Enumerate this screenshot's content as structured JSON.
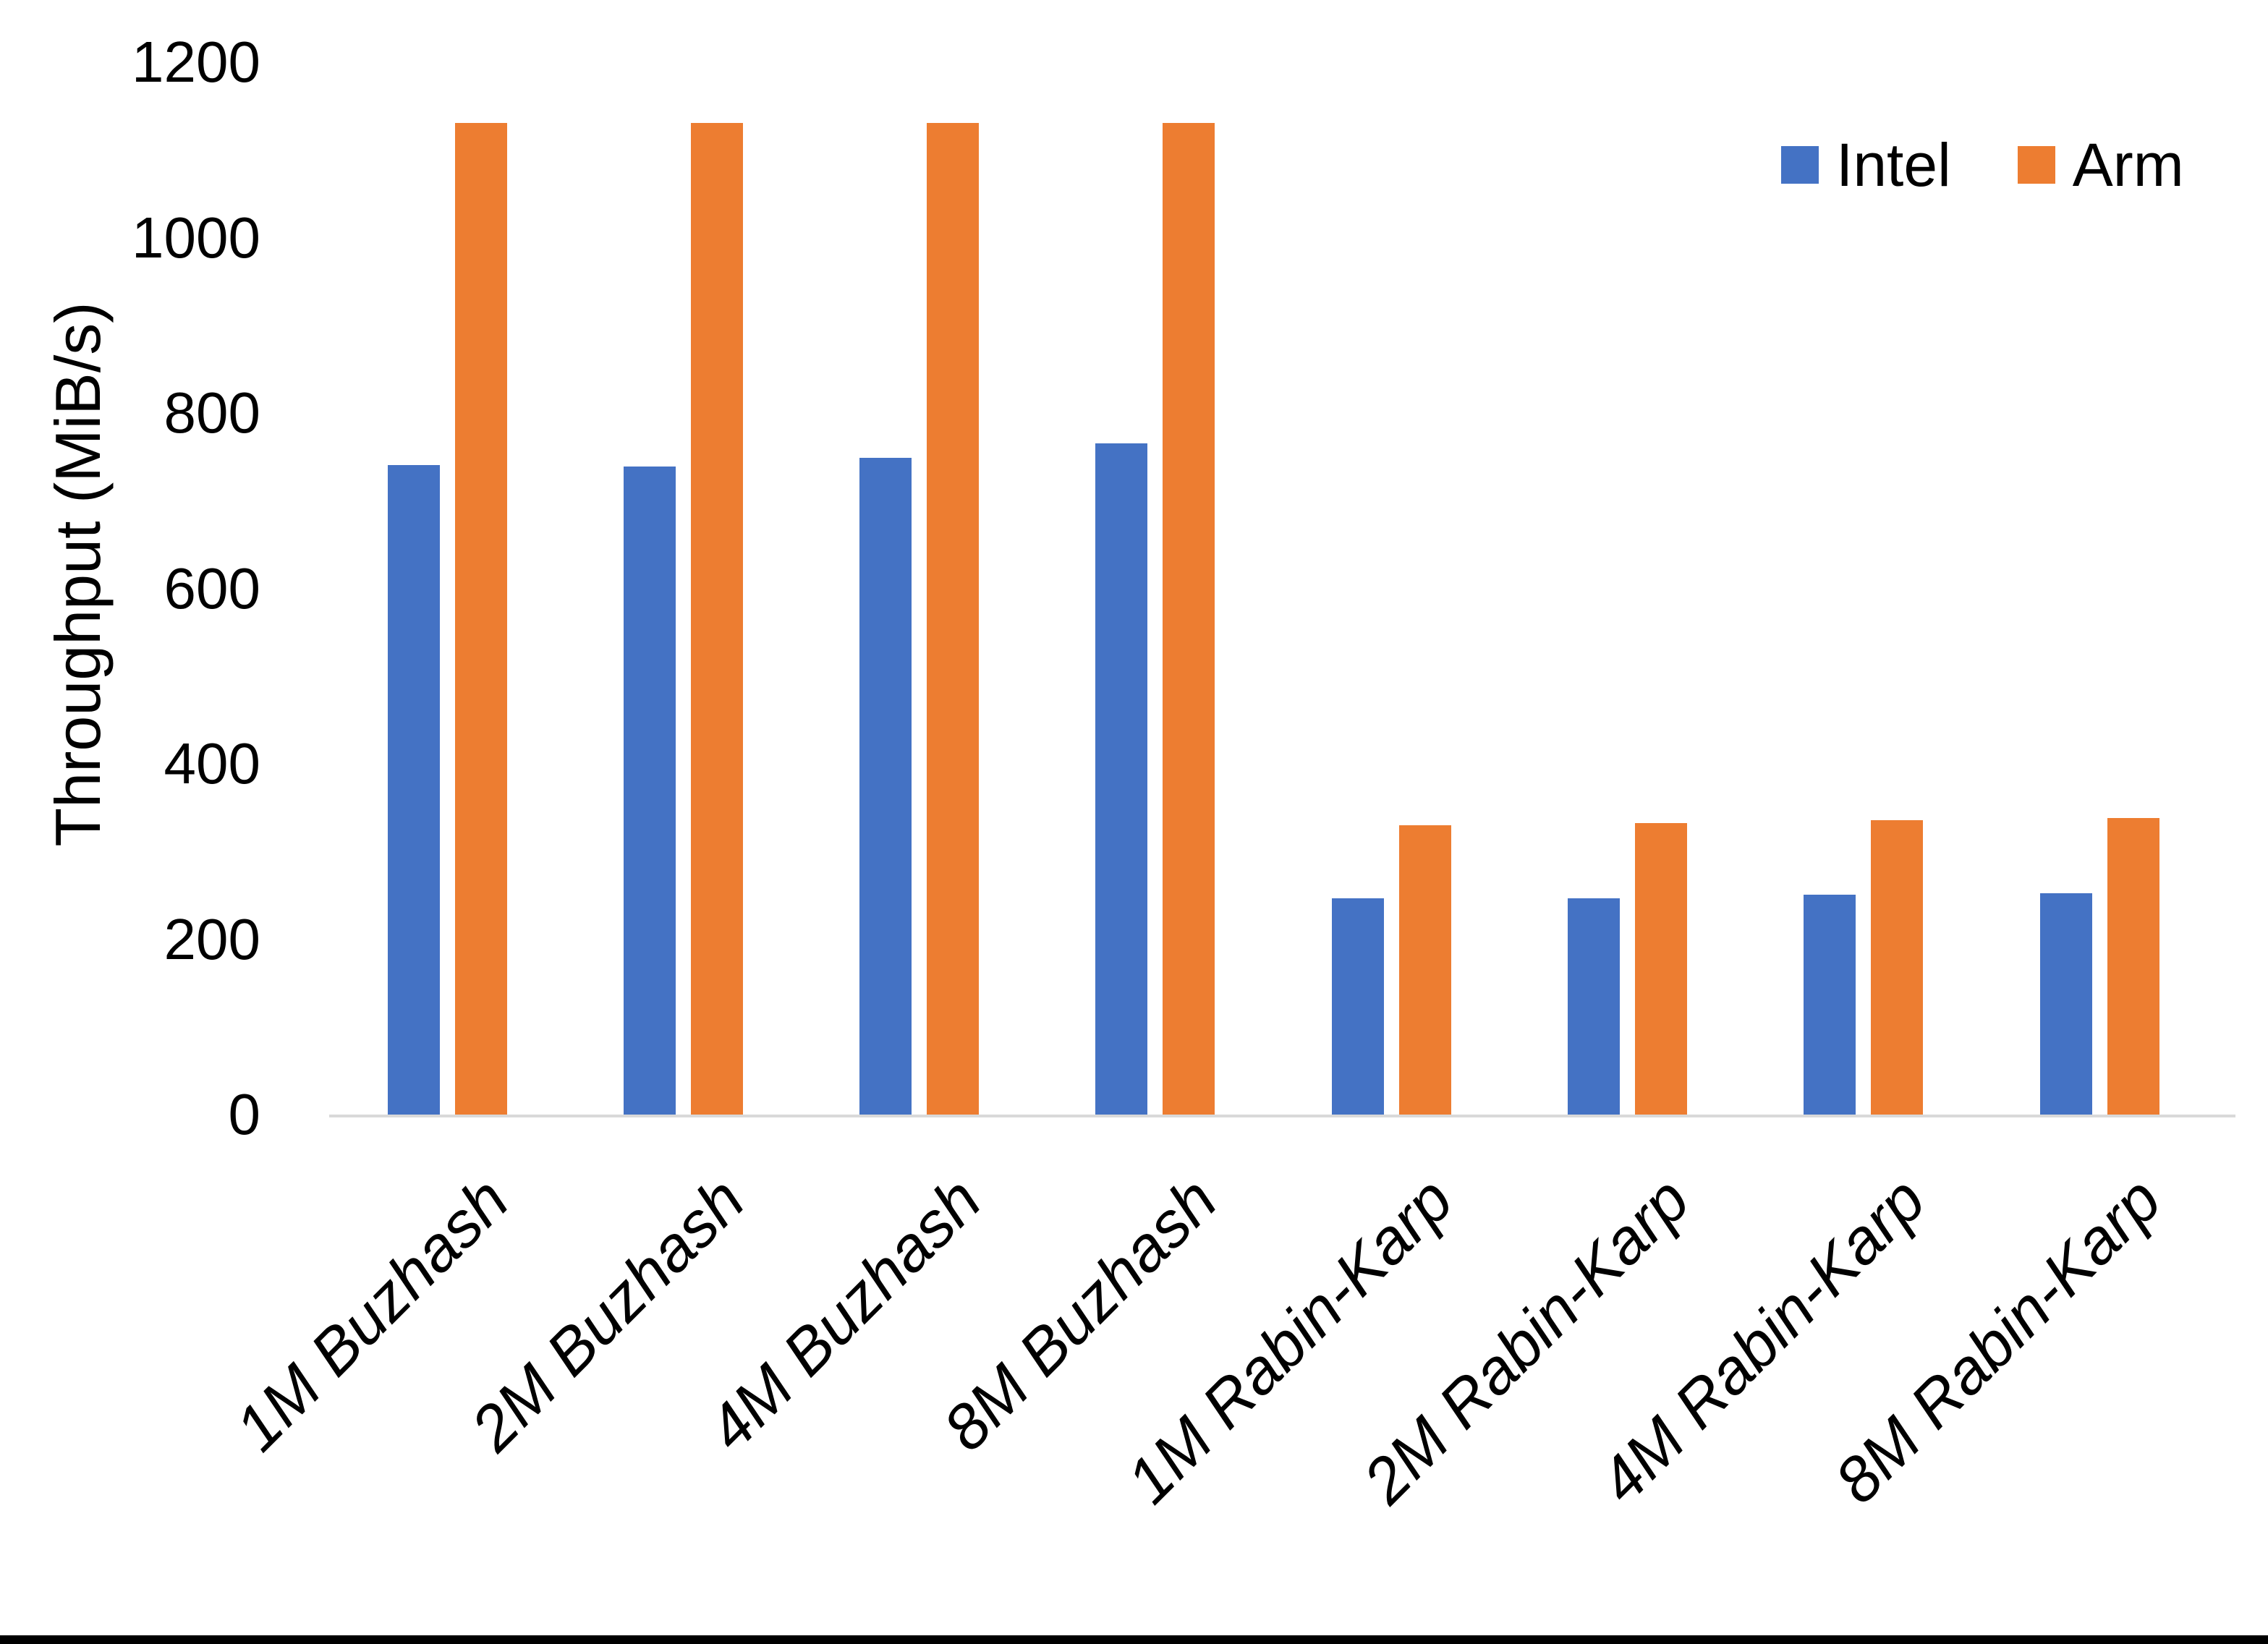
{
  "chart_data": {
    "type": "bar",
    "title": "",
    "ylabel": "Throughput (MiB/s)",
    "xlabel": "",
    "ylim": [
      0,
      1200
    ],
    "yticks": [
      0,
      200,
      400,
      600,
      800,
      1000,
      1200
    ],
    "grid": false,
    "legend_position": "top-right",
    "categories": [
      "1M Buzhash",
      "2M Buzhash",
      "4M Buzhash",
      "8M Buzhash",
      "1M Rabin-Karp",
      "2M Rabin-Karp",
      "4M Rabin-Karp",
      "8M Rabin-Karp"
    ],
    "series": [
      {
        "name": "Intel",
        "color": "#4472C4",
        "values": [
          741,
          739,
          749,
          765,
          247,
          247,
          251,
          252
        ]
      },
      {
        "name": "Arm",
        "color": "#ED7D31",
        "values": [
          1131,
          1131,
          1131,
          1131,
          330,
          332,
          336,
          338
        ]
      }
    ]
  },
  "colors": {
    "axis_line": "#D9D9D9",
    "text": "#000000",
    "background": "#FFFFFF",
    "bottom_border": "#000000"
  }
}
